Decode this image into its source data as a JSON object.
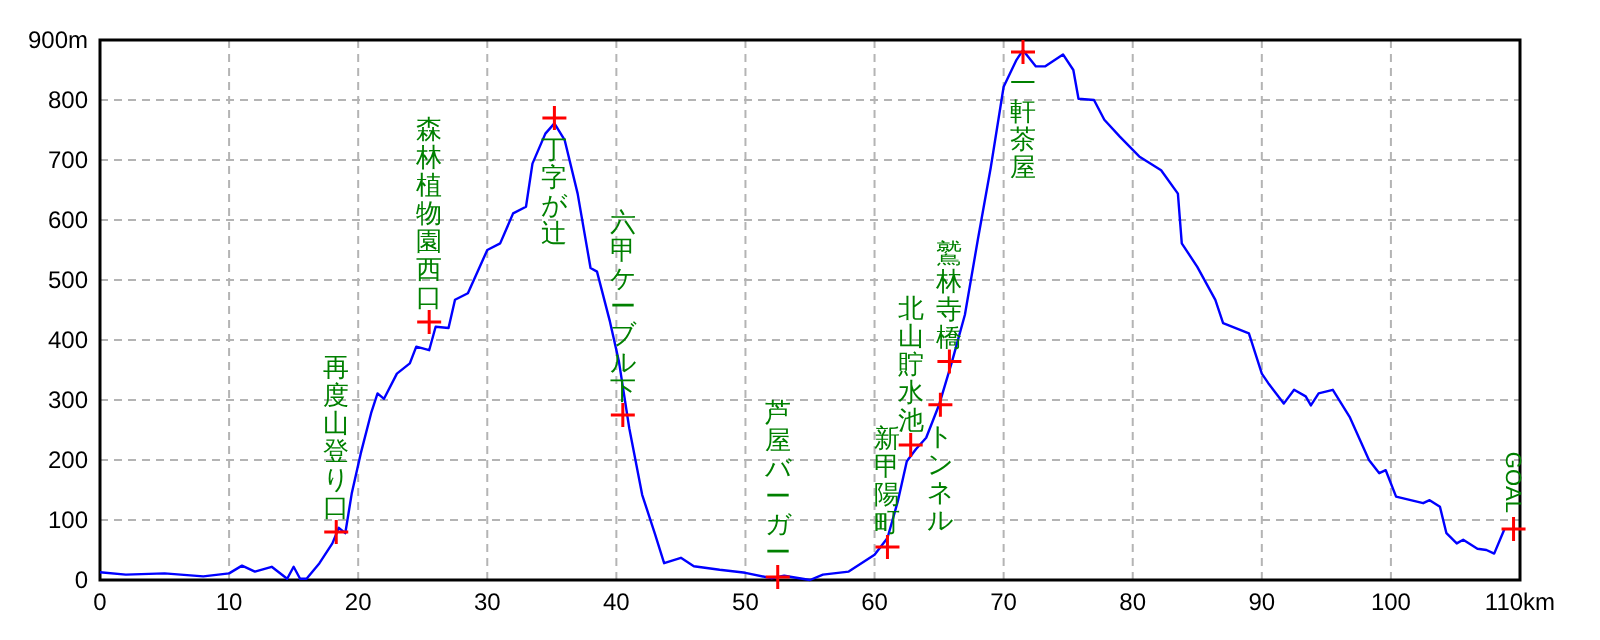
{
  "chart_data": {
    "type": "line",
    "xlim": [
      0,
      110
    ],
    "ylim": [
      0,
      900
    ],
    "xticks": [
      0,
      10,
      20,
      30,
      40,
      50,
      60,
      70,
      80,
      90,
      100,
      {
        "value": 110,
        "label": "110km"
      }
    ],
    "yticks": [
      0,
      100,
      200,
      300,
      400,
      500,
      600,
      700,
      800,
      {
        "value": 900,
        "label": "900m"
      }
    ],
    "grid": true,
    "series": [
      {
        "color": "#0000ff",
        "marker": "none",
        "x": [
          0,
          2,
          5,
          8,
          10,
          11,
          12,
          13.3,
          14.5,
          15,
          15.5,
          16,
          17,
          18,
          18.5,
          19,
          19.5,
          20.2,
          21,
          21.5,
          22,
          23,
          24,
          24.5,
          25.5,
          26,
          27,
          27.5,
          28.5,
          30,
          31,
          32,
          33,
          33.5,
          34.5,
          35.2,
          36,
          37,
          38,
          38.5,
          39.5,
          40.2,
          41,
          42,
          43,
          43.7,
          45,
          46,
          48,
          50,
          52,
          53,
          55,
          56,
          58,
          60,
          61,
          61.8,
          62.5,
          63.2,
          64,
          65,
          66,
          67,
          68,
          69,
          70,
          71,
          71.5,
          72.5,
          73.2,
          74.6,
          75.4,
          75.8,
          77,
          77.8,
          79,
          80.5,
          82.2,
          83.5,
          83.8,
          85,
          86.4,
          87,
          89,
          90,
          90.5,
          91.7,
          92.5,
          93.4,
          93.8,
          94.4,
          95.5,
          96.8,
          98.3,
          99.1,
          99.6,
          100.4,
          102.5,
          103,
          103.8,
          104.3,
          105.1,
          105.6,
          106.7,
          107.4,
          108,
          108.8
        ],
        "values": [
          13,
          9,
          11,
          6,
          11,
          24,
          14,
          22,
          2,
          22,
          2,
          2,
          28,
          61,
          87,
          78,
          144,
          211,
          278,
          311,
          302,
          344,
          361,
          389,
          383,
          422,
          420,
          467,
          478,
          550,
          561,
          611,
          622,
          694,
          744,
          761,
          733,
          644,
          520,
          514,
          431,
          364,
          253,
          142,
          76,
          28,
          37,
          23,
          17,
          12,
          3,
          7,
          0,
          9,
          14,
          42,
          70,
          131,
          198,
          218,
          237,
          292,
          364,
          442,
          567,
          687,
          822,
          867,
          883,
          856,
          856,
          876,
          850,
          802,
          800,
          767,
          739,
          706,
          683,
          644,
          561,
          522,
          467,
          428,
          411,
          344,
          328,
          294,
          317,
          306,
          291,
          311,
          317,
          272,
          200,
          178,
          183,
          139,
          128,
          133,
          122,
          78,
          61,
          67,
          52,
          50,
          44,
          85
        ]
      },
      {
        "type": "scatter",
        "color": "#ff0000",
        "marker": "cross",
        "x": [
          18.3,
          25.5,
          35.2,
          40.5,
          52.5,
          61,
          62.8,
          65.1,
          65.8,
          71.5,
          109.5
        ],
        "values": [
          80,
          430,
          770,
          275,
          5,
          55,
          225,
          292,
          364,
          880,
          85
        ]
      }
    ],
    "annotations": [
      {
        "text": "再度山登り口",
        "x": 18.3,
        "y": 80
      },
      {
        "text": "森林植物園西口",
        "x": 25.5,
        "y": 430
      },
      {
        "text": "丁字が辻",
        "x": 35.2,
        "y": 770
      },
      {
        "text": "六甲ケーブル下",
        "x": 40.5,
        "y": 275
      },
      {
        "text": "芦屋バーガー",
        "x": 52.5,
        "y": 5
      },
      {
        "text": "新甲陽町",
        "x": 61,
        "y": 55
      },
      {
        "text": "北山貯水池",
        "x": 62.8,
        "y": 225
      },
      {
        "text": "トンネル",
        "x": 65.1,
        "y": 292
      },
      {
        "text": "鷲林寺橋",
        "x": 65.8,
        "y": 364
      },
      {
        "text": "一軒茶屋",
        "x": 71.5,
        "y": 880
      },
      {
        "text": "GOAL",
        "x": 109.5,
        "y": 85
      }
    ]
  }
}
